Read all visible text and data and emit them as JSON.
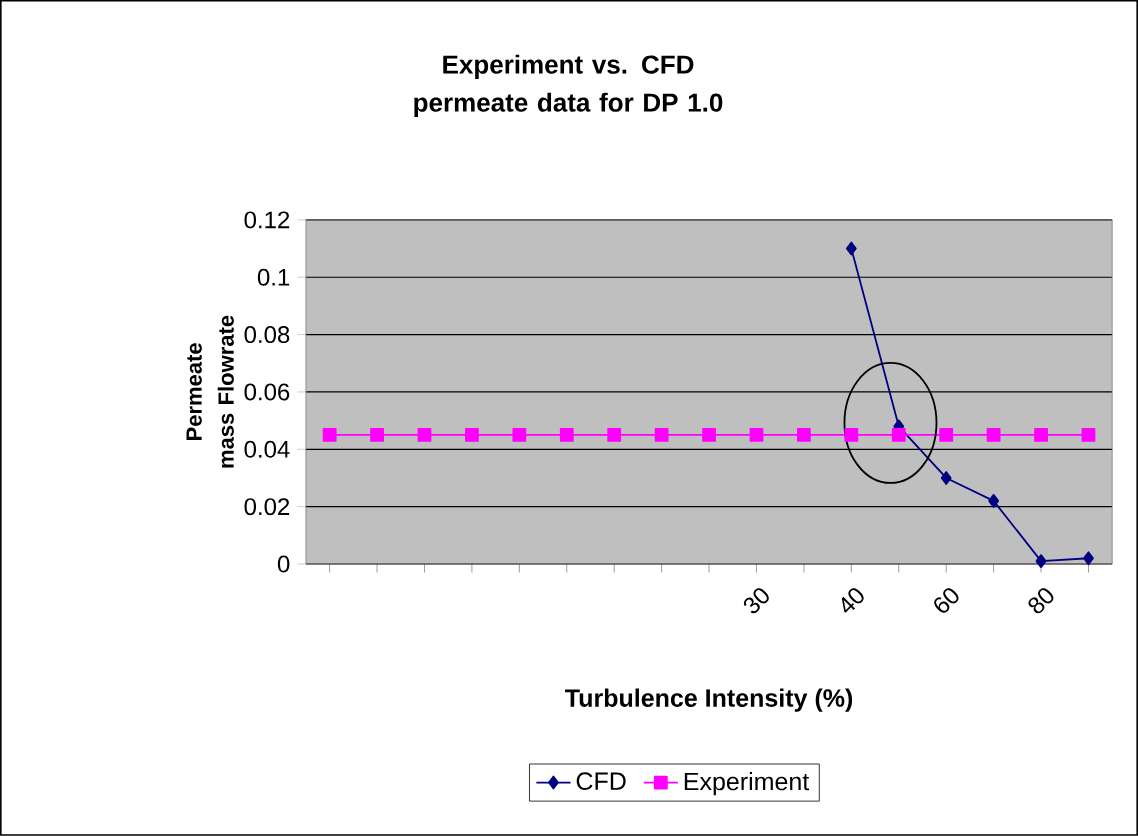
{
  "chart_data": {
    "type": "line",
    "title": "Experiment vs. CFD permeate data for DP 1.0",
    "xlabel": "Turbulence Intensity (%)",
    "ylabel": "Permeate mass Flowrate",
    "categories": [
      null,
      null,
      null,
      null,
      null,
      null,
      null,
      null,
      null,
      "30",
      null,
      "40",
      null,
      "60",
      null,
      "80",
      null
    ],
    "series": [
      {
        "name": "CFD",
        "color": "#000080",
        "marker": "diamond",
        "values": [
          null,
          null,
          null,
          null,
          null,
          null,
          null,
          null,
          null,
          null,
          null,
          0.11,
          0.048,
          0.03,
          0.022,
          0.001,
          0.002
        ]
      },
      {
        "name": "Experiment",
        "color": "#ff00ff",
        "marker": "square",
        "values": [
          0.045,
          0.045,
          0.045,
          0.045,
          0.045,
          0.045,
          0.045,
          0.045,
          0.045,
          0.045,
          0.045,
          0.045,
          0.045,
          0.045,
          0.045,
          0.045,
          0.045
        ]
      }
    ],
    "ylim": [
      0,
      0.12
    ],
    "yticks": [
      0,
      0.02,
      0.04,
      0.06,
      0.08,
      0.1,
      0.12
    ],
    "grid": "y",
    "legend": "bottom"
  }
}
